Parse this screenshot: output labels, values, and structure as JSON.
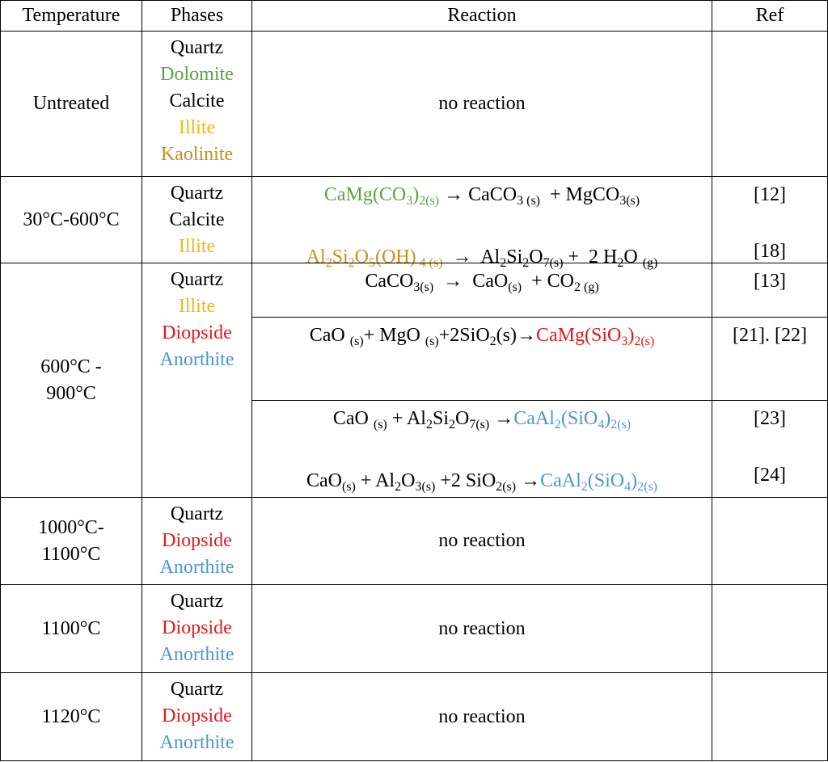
{
  "table": {
    "header": [
      "Temperature",
      "Phases",
      "Reaction",
      "Ref"
    ],
    "rows": [
      {
        "temperature": [
          "Untreated"
        ],
        "phases": [
          {
            "text": "Quartz"
          },
          {
            "text": "Dolomite",
            "color": "#5aa33f"
          },
          {
            "text": "Calcite"
          },
          {
            "text": "Illite",
            "color": "#f2b90f"
          },
          {
            "text": "Kaolinite",
            "color": "#c7901a"
          }
        ],
        "reaction_cells": [
          [
            {
              "equation": [
                {
                  "text": "no reaction"
                }
              ]
            }
          ]
        ]
      },
      {
        "temperature": [
          "30°C-600°C"
        ],
        "phases": [
          {
            "text": "Quartz"
          },
          {
            "text": "Calcite"
          },
          {
            "text": "Illite",
            "color": "#f2b90f"
          }
        ],
        "reaction_cells": [
          [
            {
              "equation": [
                {
                  "text": "CaMg(CO",
                  "color": "#5aa33f"
                },
                {
                  "text": "3",
                  "sub": true,
                  "color": "#5aa33f"
                },
                {
                  "text": ")",
                  "color": "#5aa33f"
                },
                {
                  "text": "2(s)",
                  "sub": true,
                  "color": "#5aa33f"
                },
                {
                  "text": " → CaCO"
                },
                {
                  "text": "3 (s)",
                  "sub": true
                },
                {
                  "text": "  + MgCO"
                },
                {
                  "text": "3(s)",
                  "sub": true
                }
              ],
              "ref": "[12]"
            },
            {
              "equation": [
                {
                  "text": "Al",
                  "color": "#c7901a"
                },
                {
                  "text": "2",
                  "sub": true,
                  "color": "#c7901a"
                },
                {
                  "text": "Si",
                  "color": "#c7901a"
                },
                {
                  "text": "2",
                  "sub": true,
                  "color": "#c7901a"
                },
                {
                  "text": "O",
                  "color": "#c7901a"
                },
                {
                  "text": "5",
                  "sub": true,
                  "color": "#c7901a"
                },
                {
                  "text": "(OH)",
                  "color": "#c7901a"
                },
                {
                  "text": " 4 (s)",
                  "sub": true,
                  "color": "#c7901a"
                },
                {
                  "text": "  →  Al"
                },
                {
                  "text": "2",
                  "sub": true
                },
                {
                  "text": "Si"
                },
                {
                  "text": "2",
                  "sub": true
                },
                {
                  "text": "O"
                },
                {
                  "text": "7(s)",
                  "sub": true
                },
                {
                  "text": " +  2 H"
                },
                {
                  "text": "2",
                  "sub": true
                },
                {
                  "text": "O "
                },
                {
                  "text": "(g)",
                  "sub": true
                }
              ],
              "ref": "[18]"
            }
          ]
        ]
      },
      {
        "temperature": [
          "600°C -",
          "900°C"
        ],
        "phases": [
          {
            "text": "Quartz"
          },
          {
            "text": "Illite",
            "color": "#f2b90f"
          },
          {
            "text": "Diopside",
            "color": "#e8161b"
          },
          {
            "text": "Anorthite",
            "color": "#4f95d0"
          }
        ],
        "reaction_cells": [
          [
            {
              "equation": [
                {
                  "text": "CaCO"
                },
                {
                  "text": "3(s)",
                  "sub": true
                },
                {
                  "text": "  →  CaO"
                },
                {
                  "text": "(s)",
                  "sub": true
                },
                {
                  "text": "  + CO"
                },
                {
                  "text": "2 (g)",
                  "sub": true
                }
              ],
              "ref": "[13]"
            }
          ],
          [
            {
              "equation": [
                {
                  "text": "CaO "
                },
                {
                  "text": "(s)",
                  "sub": true
                },
                {
                  "text": "+ MgO "
                },
                {
                  "text": "(s)",
                  "sub": true
                },
                {
                  "text": "+2SiO"
                },
                {
                  "text": "2",
                  "sub": true
                },
                {
                  "text": "(s)→"
                },
                {
                  "text": "CaMg(SiO",
                  "color": "#e8161b"
                },
                {
                  "text": "3",
                  "sub": true,
                  "color": "#e8161b"
                },
                {
                  "text": ")",
                  "color": "#e8161b"
                },
                {
                  "text": "2(s)",
                  "sub": true,
                  "color": "#e8161b"
                }
              ],
              "ref": "[21]. [22]"
            }
          ],
          [
            {
              "equation": [
                {
                  "text": "CaO "
                },
                {
                  "text": "(s)",
                  "sub": true
                },
                {
                  "text": " + Al"
                },
                {
                  "text": "2",
                  "sub": true
                },
                {
                  "text": "Si"
                },
                {
                  "text": "2",
                  "sub": true
                },
                {
                  "text": "O"
                },
                {
                  "text": "7(s)",
                  "sub": true
                },
                {
                  "text": " →"
                },
                {
                  "text": "CaAl",
                  "color": "#4f95d0"
                },
                {
                  "text": "2",
                  "sub": true,
                  "color": "#4f95d0"
                },
                {
                  "text": "(SiO",
                  "color": "#4f95d0"
                },
                {
                  "text": "4",
                  "sub": true,
                  "color": "#4f95d0"
                },
                {
                  "text": ")",
                  "color": "#4f95d0"
                },
                {
                  "text": "2(s)",
                  "sub": true,
                  "color": "#4f95d0"
                }
              ],
              "ref": "[23]"
            },
            {
              "equation": [
                {
                  "text": "CaO"
                },
                {
                  "text": "(s)",
                  "sub": true
                },
                {
                  "text": " + Al"
                },
                {
                  "text": "2",
                  "sub": true
                },
                {
                  "text": "O"
                },
                {
                  "text": "3(s)",
                  "sub": true
                },
                {
                  "text": " +2 SiO"
                },
                {
                  "text": "2(s)",
                  "sub": true
                },
                {
                  "text": " →"
                },
                {
                  "text": "CaAl",
                  "color": "#4f95d0"
                },
                {
                  "text": "2",
                  "sub": true,
                  "color": "#4f95d0"
                },
                {
                  "text": "(SiO",
                  "color": "#4f95d0"
                },
                {
                  "text": "4",
                  "sub": true,
                  "color": "#4f95d0"
                },
                {
                  "text": ")",
                  "color": "#4f95d0"
                },
                {
                  "text": "2(s)",
                  "sub": true,
                  "color": "#4f95d0"
                }
              ],
              "ref": "[24]"
            }
          ]
        ]
      },
      {
        "temperature": [
          "1000°C-",
          "1100°C"
        ],
        "phases": [
          {
            "text": "Quartz"
          },
          {
            "text": "Diopside",
            "color": "#e8161b"
          },
          {
            "text": "Anorthite",
            "color": "#4f95d0"
          }
        ],
        "reaction_cells": [
          [
            {
              "equation": [
                {
                  "text": "no reaction"
                }
              ]
            }
          ]
        ]
      },
      {
        "temperature": [
          "1100°C"
        ],
        "phases": [
          {
            "text": "Quartz"
          },
          {
            "text": "Diopside",
            "color": "#e8161b"
          },
          {
            "text": "Anorthite",
            "color": "#4f95d0"
          }
        ],
        "reaction_cells": [
          [
            {
              "equation": [
                {
                  "text": "no reaction"
                }
              ]
            }
          ]
        ]
      },
      {
        "temperature": [
          "1120°C"
        ],
        "phases": [
          {
            "text": "Quartz"
          },
          {
            "text": "Diopside",
            "color": "#e8161b"
          },
          {
            "text": "Anorthite",
            "color": "#4f95d0"
          }
        ],
        "reaction_cells": [
          [
            {
              "equation": [
                {
                  "text": "no reaction"
                }
              ]
            }
          ]
        ]
      }
    ]
  }
}
